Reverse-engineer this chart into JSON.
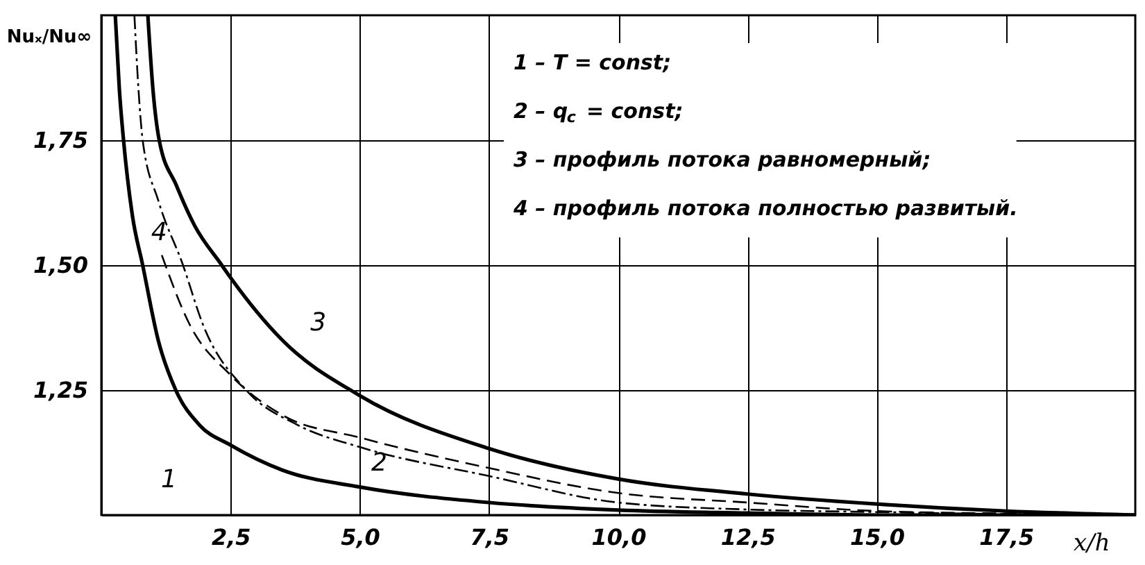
{
  "chart_data": {
    "type": "line",
    "xlabel": "x/h",
    "ylabel": "Nuₓ/Nu∞",
    "xlim": [
      0,
      20
    ],
    "ylim": [
      1.0,
      2.0
    ],
    "xticks": [
      {
        "value": 2.5,
        "label": "2,5"
      },
      {
        "value": 5,
        "label": "5,0"
      },
      {
        "value": 7.5,
        "label": "7,5"
      },
      {
        "value": 10,
        "label": "10,0"
      },
      {
        "value": 12.5,
        "label": "12,5"
      },
      {
        "value": 15,
        "label": "15,0"
      },
      {
        "value": 17.5,
        "label": "17,5"
      }
    ],
    "yticks": [
      {
        "value": 1.25,
        "label": "1,25"
      },
      {
        "value": 1.5,
        "label": "1,50"
      },
      {
        "value": 1.75,
        "label": "1,75"
      }
    ],
    "grid": true,
    "legend": "bottom left",
    "series": [
      {
        "name": "1",
        "color": "#000000",
        "line_style": "solid",
        "x": [
          0.27,
          0.35,
          0.43,
          0.6,
          0.8,
          1.1,
          1.44,
          1.9,
          2.5,
          3.5,
          5,
          7.5,
          10,
          12.5,
          15,
          20
        ],
        "values": [
          2.0,
          1.85,
          1.75,
          1.6,
          1.5,
          1.35,
          1.25,
          1.18,
          1.14,
          1.09,
          1.056,
          1.025,
          1.01,
          1.004,
          1.0,
          1.0
        ]
      },
      {
        "name": "2",
        "color": "#000000",
        "line_style": "dashdot",
        "x": [
          0.64,
          0.72,
          0.8,
          1.1,
          1.58,
          1.97,
          2.8,
          3.8,
          5,
          7.5,
          10,
          12.5,
          15,
          17.5,
          20
        ],
        "values": [
          2.0,
          1.85,
          1.75,
          1.63,
          1.5,
          1.38,
          1.25,
          1.18,
          1.136,
          1.078,
          1.025,
          1.011,
          1.006,
          1.002,
          1.0
        ]
      },
      {
        "name": "3",
        "color": "#000000",
        "line_style": "solid",
        "x": [
          0.9,
          1.0,
          1.12,
          1.45,
          1.8,
          2.33,
          2.5,
          3.5,
          5,
          7.5,
          10,
          12.5,
          15,
          17.5,
          20
        ],
        "values": [
          2.0,
          1.85,
          1.75,
          1.66,
          1.58,
          1.5,
          1.475,
          1.35,
          1.239,
          1.133,
          1.072,
          1.042,
          1.022,
          1.008,
          1.0
        ]
      },
      {
        "name": "4",
        "color": "#000000",
        "line_style": "dashed",
        "x": [
          1.17,
          1.7,
          2.5,
          3.5,
          5,
          7.5,
          10,
          12.5,
          15,
          17.5,
          20
        ],
        "values": [
          1.52,
          1.383,
          1.28,
          1.2,
          1.155,
          1.094,
          1.044,
          1.025,
          1.008,
          1.003,
          1.0
        ]
      }
    ],
    "annotations": [
      "1 – T = const;",
      "2 – q$_{c}$ = const;",
      "3 – профиль потока равномерный;",
      "4 – профиль потока полностью развитый."
    ]
  }
}
